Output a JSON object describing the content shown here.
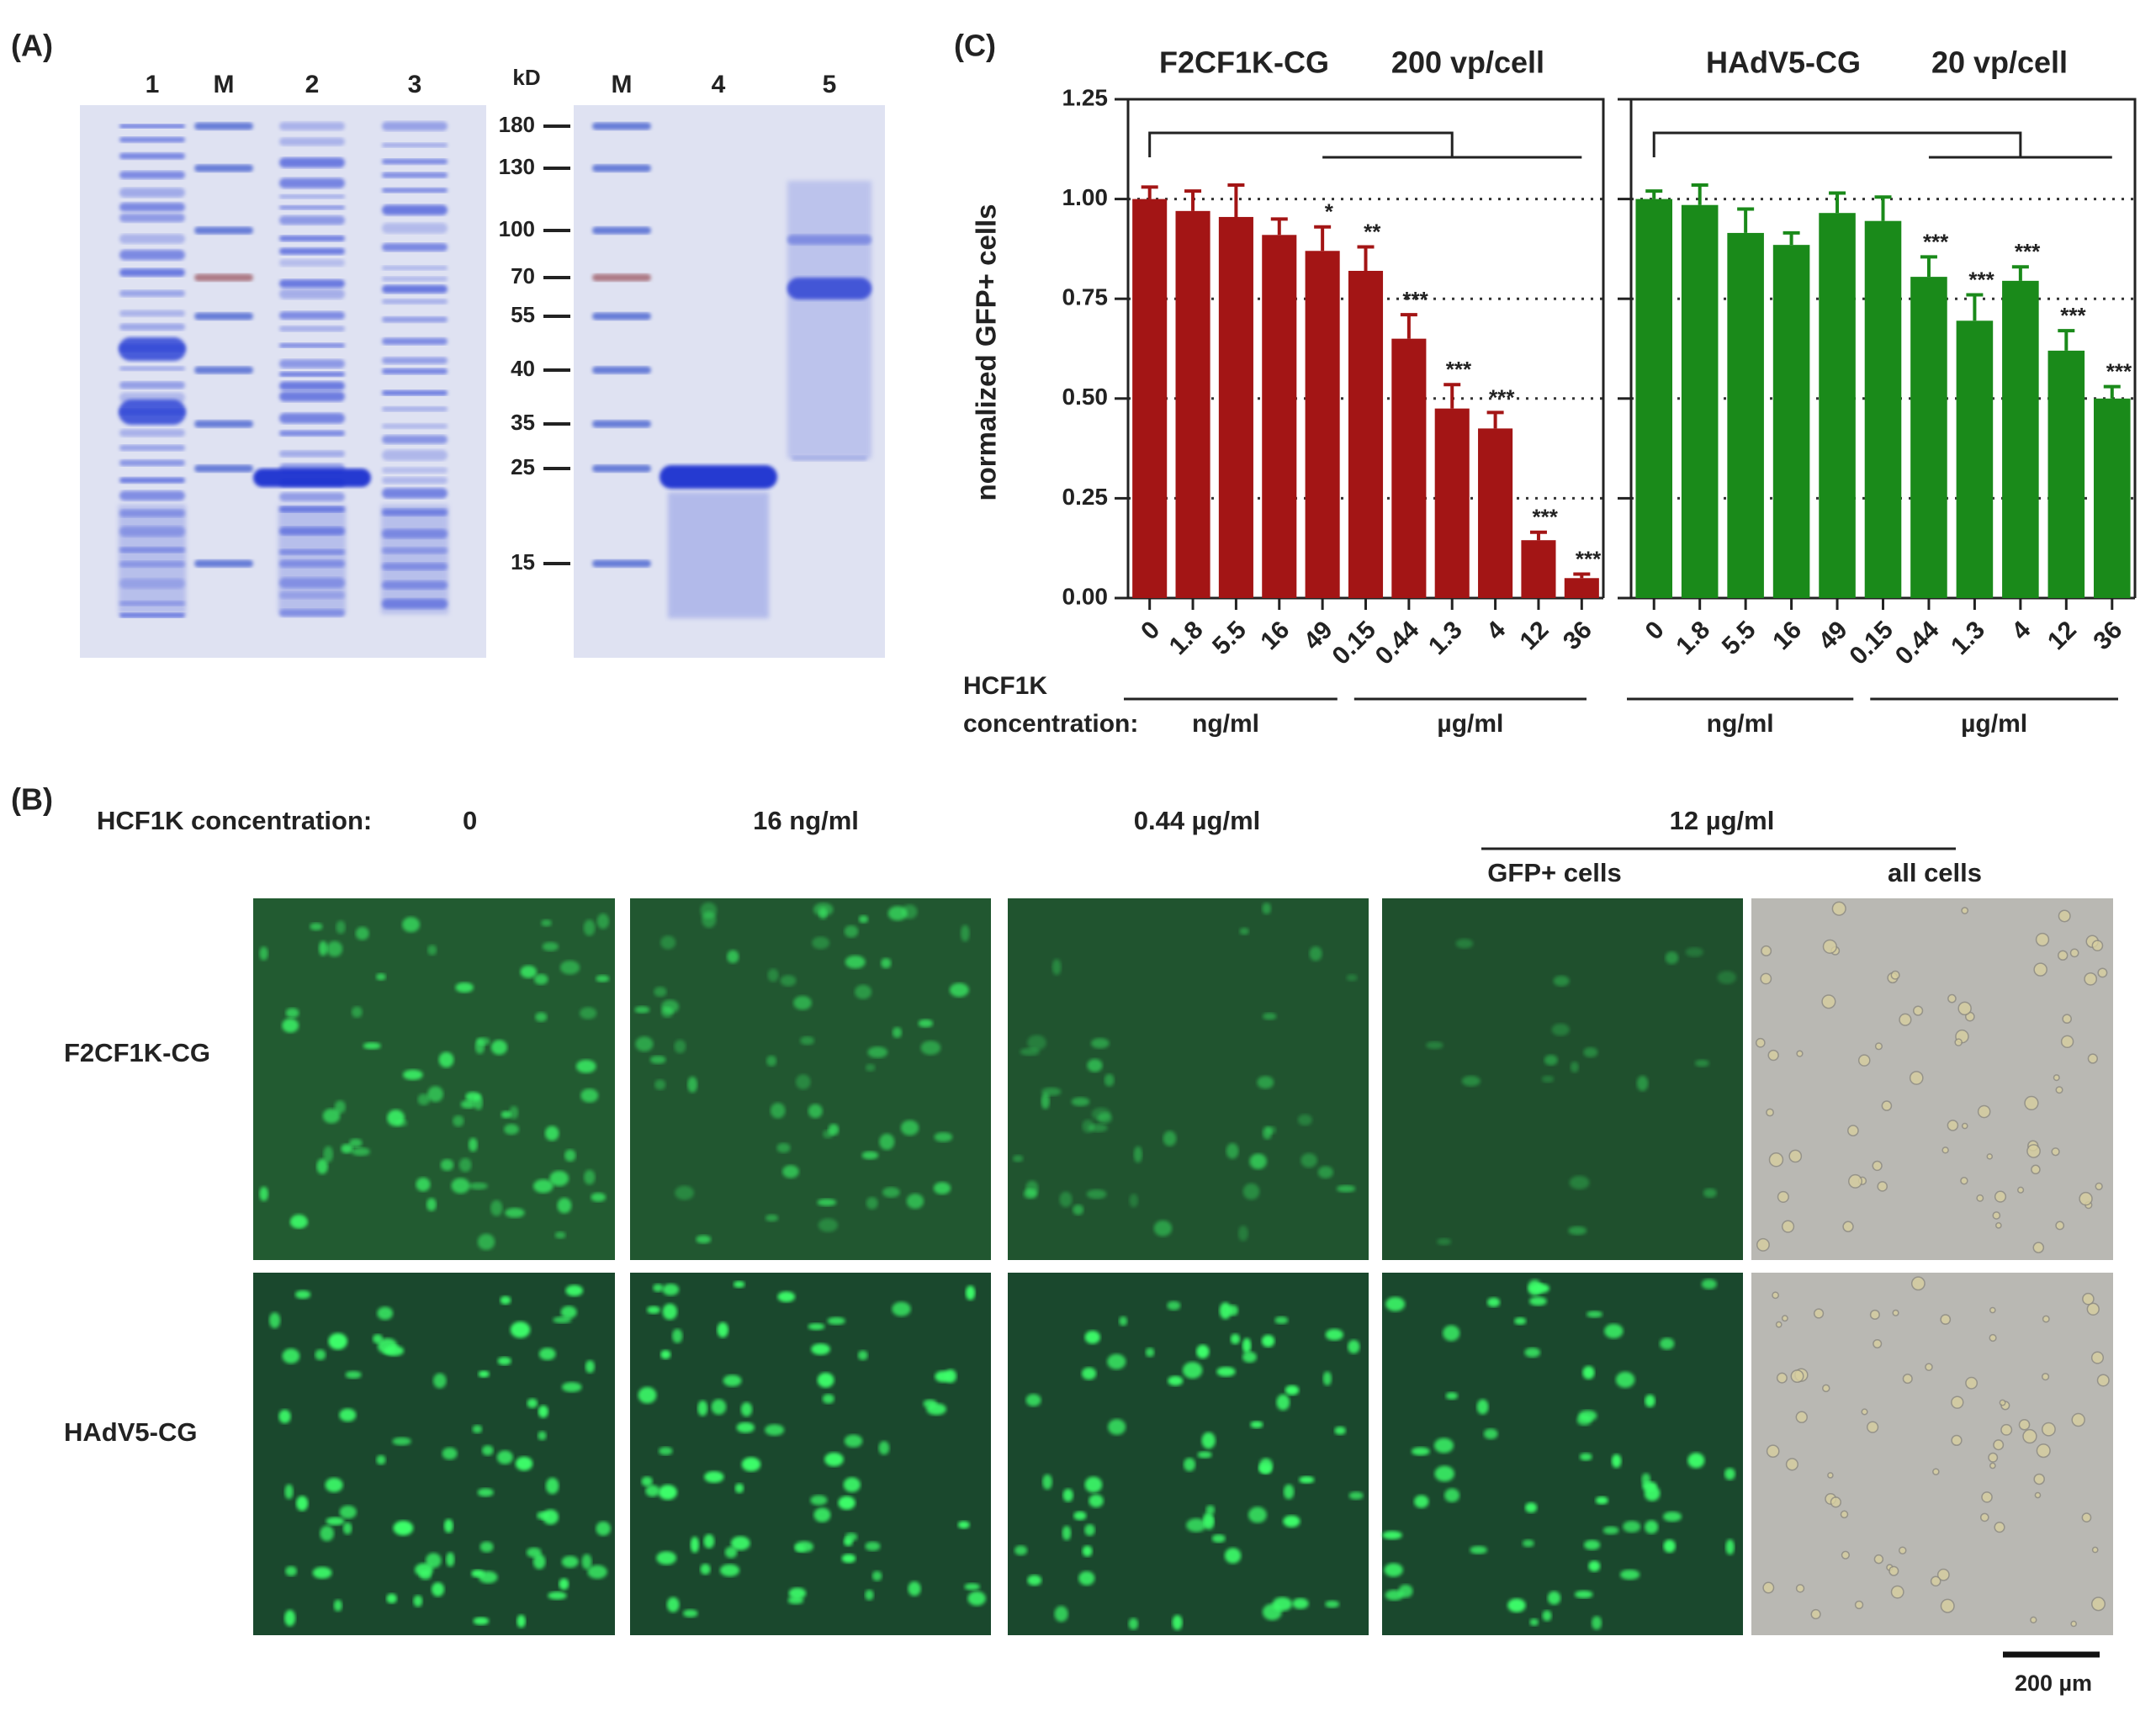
{
  "panel_labels": [
    "(A)",
    "(B)",
    "(C)"
  ],
  "gel": {
    "left_lanes": [
      "1",
      "M",
      "2",
      "3"
    ],
    "right_lanes": [
      "M",
      "4",
      "5"
    ],
    "marker_unit": "kD",
    "markers": [
      "180",
      "130",
      "100",
      "70",
      "55",
      "40",
      "35",
      "25",
      "15"
    ]
  },
  "chart_data": [
    {
      "type": "bar",
      "title": "F2CF1K-CG",
      "subtitle": "200 vp/cell",
      "y_label": "normalized GFP+ cells",
      "x_label_lines": [
        "HCF1K",
        "concentration:"
      ],
      "categories": [
        "0",
        "1.8",
        "5.5",
        "16",
        "49",
        "0.15",
        "0.44",
        "1.3",
        "4",
        "12",
        "36"
      ],
      "groups": [
        "ng/ml",
        "µg/ml"
      ],
      "values": [
        1.0,
        0.97,
        0.955,
        0.91,
        0.87,
        0.82,
        0.65,
        0.475,
        0.425,
        0.145,
        0.05
      ],
      "errors": [
        0.03,
        0.05,
        0.08,
        0.04,
        0.06,
        0.06,
        0.06,
        0.06,
        0.04,
        0.02,
        0.01
      ],
      "annotations": [
        null,
        null,
        null,
        null,
        "*",
        "**",
        "***",
        "***",
        "***",
        "***",
        "***"
      ],
      "color": "#a31515",
      "ylim": [
        0,
        1.25
      ],
      "yticks": [
        {
          "value": 0,
          "label": "0.00"
        },
        0.25,
        {
          "value": 0.5,
          "label": "0.50"
        },
        0.75,
        {
          "value": 1,
          "label": "1.00"
        },
        1.25
      ],
      "grid": "dotted"
    },
    {
      "type": "bar",
      "title": "HAdV5-CG",
      "subtitle": "20 vp/cell",
      "categories": [
        "0",
        "1.8",
        "5.5",
        "16",
        "49",
        "0.15",
        "0.44",
        "1.3",
        "4",
        "12",
        "36"
      ],
      "groups": [
        "ng/ml",
        "µg/ml"
      ],
      "values": [
        1.0,
        0.985,
        0.915,
        0.885,
        0.965,
        0.945,
        0.805,
        0.695,
        0.795,
        0.62,
        0.5
      ],
      "errors": [
        0.02,
        0.05,
        0.06,
        0.03,
        0.05,
        0.06,
        0.05,
        0.065,
        0.035,
        0.05,
        0.03
      ],
      "annotations": [
        null,
        null,
        null,
        null,
        null,
        null,
        "***",
        "***",
        "***",
        "***",
        "***"
      ],
      "color": "#1a8a1a",
      "ylim": [
        0,
        1.25
      ],
      "yticks": [
        0,
        0.25,
        0.5,
        0.75,
        1,
        1.25
      ],
      "grid": "dotted"
    }
  ],
  "micrographs": {
    "concentration_label": "HCF1K concentration:",
    "conditions": [
      "0",
      "16 ng/ml",
      "0.44 µg/ml",
      "12 µg/ml"
    ],
    "subcolumns": [
      "GFP+ cells",
      "all cells"
    ],
    "rows": [
      "F2CF1K-CG",
      "HAdV5-CG"
    ],
    "scale_bar": "200 µm"
  }
}
